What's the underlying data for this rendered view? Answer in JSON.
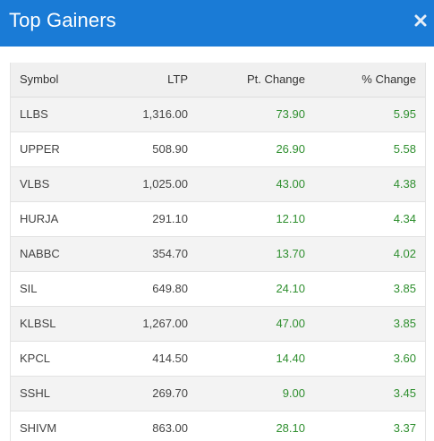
{
  "header": {
    "title": "Top Gainers",
    "close_icon": "close-icon"
  },
  "table": {
    "columns": [
      "Symbol",
      "LTP",
      "Pt. Change",
      "% Change"
    ],
    "rows": [
      {
        "symbol": "LLBS",
        "ltp": "1,316.00",
        "pt_change": "73.90",
        "pct_change": "5.95"
      },
      {
        "symbol": "UPPER",
        "ltp": "508.90",
        "pt_change": "26.90",
        "pct_change": "5.58"
      },
      {
        "symbol": "VLBS",
        "ltp": "1,025.00",
        "pt_change": "43.00",
        "pct_change": "4.38"
      },
      {
        "symbol": "HURJA",
        "ltp": "291.10",
        "pt_change": "12.10",
        "pct_change": "4.34"
      },
      {
        "symbol": "NABBC",
        "ltp": "354.70",
        "pt_change": "13.70",
        "pct_change": "4.02"
      },
      {
        "symbol": "SIL",
        "ltp": "649.80",
        "pt_change": "24.10",
        "pct_change": "3.85"
      },
      {
        "symbol": "KLBSL",
        "ltp": "1,267.00",
        "pt_change": "47.00",
        "pct_change": "3.85"
      },
      {
        "symbol": "KPCL",
        "ltp": "414.50",
        "pt_change": "14.40",
        "pct_change": "3.60"
      },
      {
        "symbol": "SSHL",
        "ltp": "269.70",
        "pt_change": "9.00",
        "pct_change": "3.45"
      },
      {
        "symbol": "SHIVM",
        "ltp": "863.00",
        "pt_change": "28.10",
        "pct_change": "3.37"
      }
    ]
  },
  "colors": {
    "header_bg": "#1a7bd6",
    "gain_text": "#2f8f2f",
    "row_alt_bg": "#f3f3f3",
    "header_row_bg": "#f0f0f0"
  }
}
